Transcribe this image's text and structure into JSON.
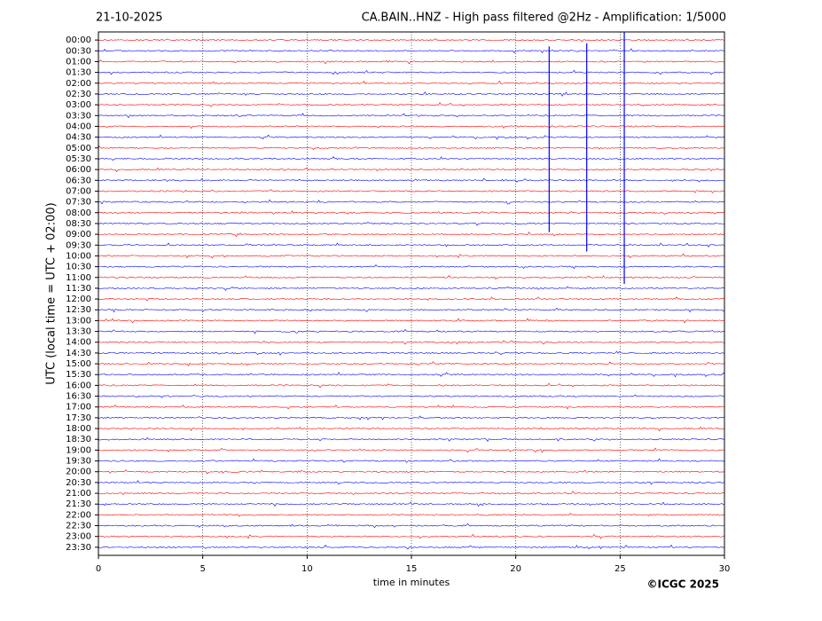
{
  "chart_data": {
    "type": "helicorder",
    "date": "21-10-2025",
    "title": "CA.BAIN..HNZ - High pass filtered @2Hz - Amplification: 1/5000",
    "y_label": "UTC (local time = UTC + 02:00)",
    "x_label": "time in minutes",
    "copyright": "©ICGC 2025",
    "xlim": [
      0,
      30
    ],
    "xticks": [
      0,
      5,
      10,
      15,
      20,
      25,
      30
    ],
    "grid": true,
    "ylim": [
      47.75,
      -0.75
    ],
    "yticks": [
      {
        "value": 0,
        "label": "00:00"
      },
      {
        "value": 1,
        "label": "00:30"
      },
      {
        "value": 2,
        "label": "01:00"
      },
      {
        "value": 3,
        "label": "01:30"
      },
      {
        "value": 4,
        "label": "02:00"
      },
      {
        "value": 5,
        "label": "02:30"
      },
      {
        "value": 6,
        "label": "03:00"
      },
      {
        "value": 7,
        "label": "03:30"
      },
      {
        "value": 8,
        "label": "04:00"
      },
      {
        "value": 9,
        "label": "04:30"
      },
      {
        "value": 10,
        "label": "05:00"
      },
      {
        "value": 11,
        "label": "05:30"
      },
      {
        "value": 12,
        "label": "06:00"
      },
      {
        "value": 13,
        "label": "06:30"
      },
      {
        "value": 14,
        "label": "07:00"
      },
      {
        "value": 15,
        "label": "07:30"
      },
      {
        "value": 16,
        "label": "08:00"
      },
      {
        "value": 17,
        "label": "08:30"
      },
      {
        "value": 18,
        "label": "09:00"
      },
      {
        "value": 19,
        "label": "09:30"
      },
      {
        "value": 20,
        "label": "10:00"
      },
      {
        "value": 21,
        "label": "10:30"
      },
      {
        "value": 22,
        "label": "11:00"
      },
      {
        "value": 23,
        "label": "11:30"
      },
      {
        "value": 24,
        "label": "12:00"
      },
      {
        "value": 25,
        "label": "12:30"
      },
      {
        "value": 26,
        "label": "13:00"
      },
      {
        "value": 27,
        "label": "13:30"
      },
      {
        "value": 28,
        "label": "14:00"
      },
      {
        "value": 29,
        "label": "14:30"
      },
      {
        "value": 30,
        "label": "15:00"
      },
      {
        "value": 31,
        "label": "15:30"
      },
      {
        "value": 32,
        "label": "16:00"
      },
      {
        "value": 33,
        "label": "16:30"
      },
      {
        "value": 34,
        "label": "17:00"
      },
      {
        "value": 35,
        "label": "17:30"
      },
      {
        "value": 36,
        "label": "18:00"
      },
      {
        "value": 37,
        "label": "18:30"
      },
      {
        "value": 38,
        "label": "19:00"
      },
      {
        "value": 39,
        "label": "19:30"
      },
      {
        "value": 40,
        "label": "20:00"
      },
      {
        "value": 41,
        "label": "20:30"
      },
      {
        "value": 42,
        "label": "21:00"
      },
      {
        "value": 43,
        "label": "21:30"
      },
      {
        "value": 44,
        "label": "22:00"
      },
      {
        "value": 45,
        "label": "22:30"
      },
      {
        "value": 46,
        "label": "23:00"
      },
      {
        "value": 47,
        "label": "23:30"
      }
    ],
    "trace_colors": [
      "red",
      "blue"
    ],
    "event_color": "blue",
    "events": [
      {
        "x": 21.6,
        "y": [
          0.6,
          17.8
        ]
      },
      {
        "x": 23.4,
        "y": [
          0.3,
          19.6
        ]
      },
      {
        "x": 25.2,
        "y": [
          -0.75,
          22.6
        ]
      }
    ]
  }
}
